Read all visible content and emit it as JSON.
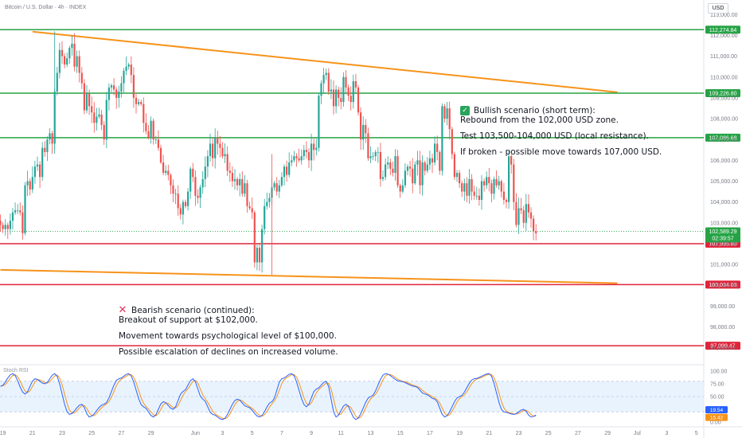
{
  "header": {
    "symbol": "Bitcoin / U.S. Dollar · 4h · INDEX",
    "currency": "USD"
  },
  "chart_data": {
    "type": "candlestick",
    "price_axis": {
      "ticks": [
        "113,000.00",
        "112,000.00",
        "111,000.00",
        "110,000.00",
        "109,000.00",
        "108,000.00",
        "107,000.00",
        "106,000.00",
        "105,000.00",
        "104,000.00",
        "103,000.00",
        "102,000.00",
        "101,000.00",
        "100,000.00",
        "99,000.00",
        "98,000.00",
        "97,000.00"
      ],
      "ylim": [
        96300,
        113700
      ]
    },
    "x_axis": {
      "ticks": [
        {
          "label": "19",
          "idx": 1
        },
        {
          "label": "21",
          "idx": 13
        },
        {
          "label": "23",
          "idx": 25
        },
        {
          "label": "25",
          "idx": 37
        },
        {
          "label": "27",
          "idx": 49
        },
        {
          "label": "29",
          "idx": 61
        },
        {
          "label": "Jun",
          "idx": 79
        },
        {
          "label": "3",
          "idx": 90
        },
        {
          "label": "5",
          "idx": 102
        },
        {
          "label": "7",
          "idx": 114
        },
        {
          "label": "9",
          "idx": 126
        },
        {
          "label": "11",
          "idx": 138
        },
        {
          "label": "13",
          "idx": 150
        },
        {
          "label": "15",
          "idx": 162
        },
        {
          "label": "17",
          "idx": 174
        },
        {
          "label": "19",
          "idx": 186
        },
        {
          "label": "21",
          "idx": 198
        },
        {
          "label": "23",
          "idx": 210
        },
        {
          "label": "25",
          "idx": 222
        },
        {
          "label": "27",
          "idx": 234
        },
        {
          "label": "29",
          "idx": 246
        },
        {
          "label": "Jul",
          "idx": 258
        },
        {
          "label": "3",
          "idx": 270
        },
        {
          "label": "5",
          "idx": 282
        }
      ]
    },
    "candles_close": [
      102900,
      102700,
      102900,
      102700,
      103100,
      103500,
      103600,
      103600,
      103500,
      102500,
      104800,
      105000,
      104600,
      105200,
      105700,
      105800,
      105200,
      106600,
      106400,
      107000,
      107300,
      106800,
      109300,
      110200,
      111300,
      111000,
      110600,
      110900,
      111400,
      111600,
      110500,
      111000,
      110200,
      109700,
      108400,
      109200,
      108600,
      108300,
      107800,
      108100,
      108200,
      107700,
      107000,
      108900,
      109500,
      109600,
      109400,
      109000,
      109300,
      109700,
      110300,
      110500,
      110600,
      110100,
      109000,
      108700,
      108800,
      108700,
      107800,
      107400,
      107100,
      107900,
      107000,
      107000,
      106600,
      105900,
      105400,
      105500,
      105300,
      104800,
      104400,
      104400,
      103700,
      103400,
      104000,
      103800,
      104500,
      105600,
      105200,
      104300,
      104200,
      104700,
      105100,
      105700,
      106200,
      106800,
      106100,
      107100,
      106800,
      106600,
      106200,
      106300,
      105500,
      105400,
      105000,
      105100,
      104800,
      105100,
      104400,
      104900,
      103800,
      103700,
      103500,
      101100,
      101800,
      101100,
      102700,
      103800,
      104000,
      104200,
      104700,
      104900,
      104500,
      104800,
      105200,
      105700,
      105300,
      105900,
      106000,
      106200,
      106100,
      106000,
      106200,
      106500,
      106400,
      106000,
      106800,
      106500,
      106600,
      109100,
      109700,
      110100,
      110200,
      109300,
      109400,
      108600,
      109400,
      109000,
      108800,
      110000,
      109500,
      109100,
      108800,
      109800,
      109500,
      108300,
      107000,
      107700,
      107300,
      106100,
      106200,
      106200,
      106400,
      106400,
      105100,
      105200,
      105800,
      105900,
      105600,
      105400,
      106200,
      104800,
      104500,
      104800,
      105500,
      105700,
      105600,
      104900,
      105800,
      106000,
      104800,
      105900,
      105500,
      105800,
      106100,
      105900,
      106800,
      106400,
      105500,
      108600,
      108000,
      108500,
      107500,
      106300,
      105200,
      105400,
      104900,
      104500,
      104900,
      104300,
      105100,
      104500,
      104300,
      104300,
      104100,
      105000,
      104800,
      105200,
      104900,
      104400,
      105100,
      104800,
      105000,
      104500,
      104100,
      104000,
      106200,
      105800,
      104000,
      102900,
      103700,
      103600,
      103000,
      103900,
      103500,
      103200,
      102600,
      102500
    ],
    "horizontal_levels": [
      {
        "value": 112274.84,
        "label": "112,274.84",
        "color": "#26a345"
      },
      {
        "value": 109226.8,
        "label": "109,226.80",
        "color": "#26a345"
      },
      {
        "value": 107086.68,
        "label": "107,086.68",
        "color": "#26a345"
      },
      {
        "value": 101995.8,
        "label": "101,995.80",
        "color": "#e0243b"
      },
      {
        "value": 100034.03,
        "label": "100,034.03",
        "color": "#e0243b"
      },
      {
        "value": 97099.47,
        "label": "97,099.47",
        "color": "#e0243b"
      }
    ],
    "trendlines": [
      {
        "from": {
          "idx": 13,
          "price": 112180
        },
        "to": {
          "idx": 250,
          "price": 109270
        },
        "color": "#f7931a"
      },
      {
        "from": {
          "idx": 0,
          "price": 100740
        },
        "to": {
          "idx": 250,
          "price": 100100
        },
        "color": "#f7931a"
      }
    ],
    "last_price": {
      "value": 102589.29,
      "label": "102,589.29",
      "countdown": "02:39:57",
      "color": "#26a345"
    },
    "stoch_rsi": {
      "ylim": [
        0,
        100
      ],
      "band": [
        20,
        80
      ],
      "ticks": [
        "100.00",
        "75.00",
        "50.00",
        "25.00",
        "0.00"
      ],
      "last_values": [
        {
          "label": "19.54",
          "color": "#2962ff"
        },
        {
          "label": "15.42",
          "color": "#f7931a"
        }
      ],
      "k_keypoints": [
        [
          0,
          70
        ],
        [
          5,
          95
        ],
        [
          10,
          55
        ],
        [
          14,
          85
        ],
        [
          18,
          75
        ],
        [
          22,
          95
        ],
        [
          28,
          15
        ],
        [
          33,
          35
        ],
        [
          36,
          10
        ],
        [
          42,
          35
        ],
        [
          48,
          85
        ],
        [
          52,
          95
        ],
        [
          58,
          30
        ],
        [
          62,
          10
        ],
        [
          66,
          40
        ],
        [
          70,
          25
        ],
        [
          74,
          60
        ],
        [
          78,
          85
        ],
        [
          82,
          45
        ],
        [
          86,
          15
        ],
        [
          90,
          5
        ],
        [
          96,
          45
        ],
        [
          100,
          30
        ],
        [
          105,
          10
        ],
        [
          110,
          40
        ],
        [
          114,
          85
        ],
        [
          118,
          95
        ],
        [
          124,
          30
        ],
        [
          128,
          65
        ],
        [
          132,
          80
        ],
        [
          136,
          10
        ],
        [
          140,
          35
        ],
        [
          144,
          5
        ],
        [
          150,
          50
        ],
        [
          156,
          95
        ],
        [
          162,
          80
        ],
        [
          168,
          70
        ],
        [
          172,
          55
        ],
        [
          176,
          45
        ],
        [
          180,
          10
        ],
        [
          186,
          50
        ],
        [
          192,
          85
        ],
        [
          198,
          95
        ],
        [
          204,
          20
        ],
        [
          208,
          15
        ],
        [
          212,
          25
        ],
        [
          215,
          10
        ],
        [
          218,
          15
        ],
        [
          222,
          80
        ],
        [
          226,
          95
        ],
        [
          230,
          60
        ],
        [
          234,
          10
        ],
        [
          238,
          5
        ],
        [
          244,
          15
        ],
        [
          250,
          70
        ],
        [
          254,
          85
        ],
        [
          256,
          45
        ],
        [
          260,
          20
        ],
        [
          264,
          15
        ]
      ]
    }
  },
  "annotations": {
    "bullish": {
      "title": "Bullish scenario (short term):",
      "lines": [
        "Rebound from the 102,000 USD zone.",
        "Test 103,500-104,000 USD (local resistance).",
        "If broken - possible move towards 107,000 USD."
      ]
    },
    "bearish": {
      "title": "Bearish scenario (continued):",
      "lines": [
        "Breakout of support at $102,000.",
        "Movement towards psychological level of $100,000.",
        "Possible escalation of declines on increased volume."
      ]
    }
  },
  "colors": {
    "up": "#26a69a",
    "down": "#ef5350",
    "rsi_k": "#2962ff",
    "rsi_d": "#f7931a"
  }
}
